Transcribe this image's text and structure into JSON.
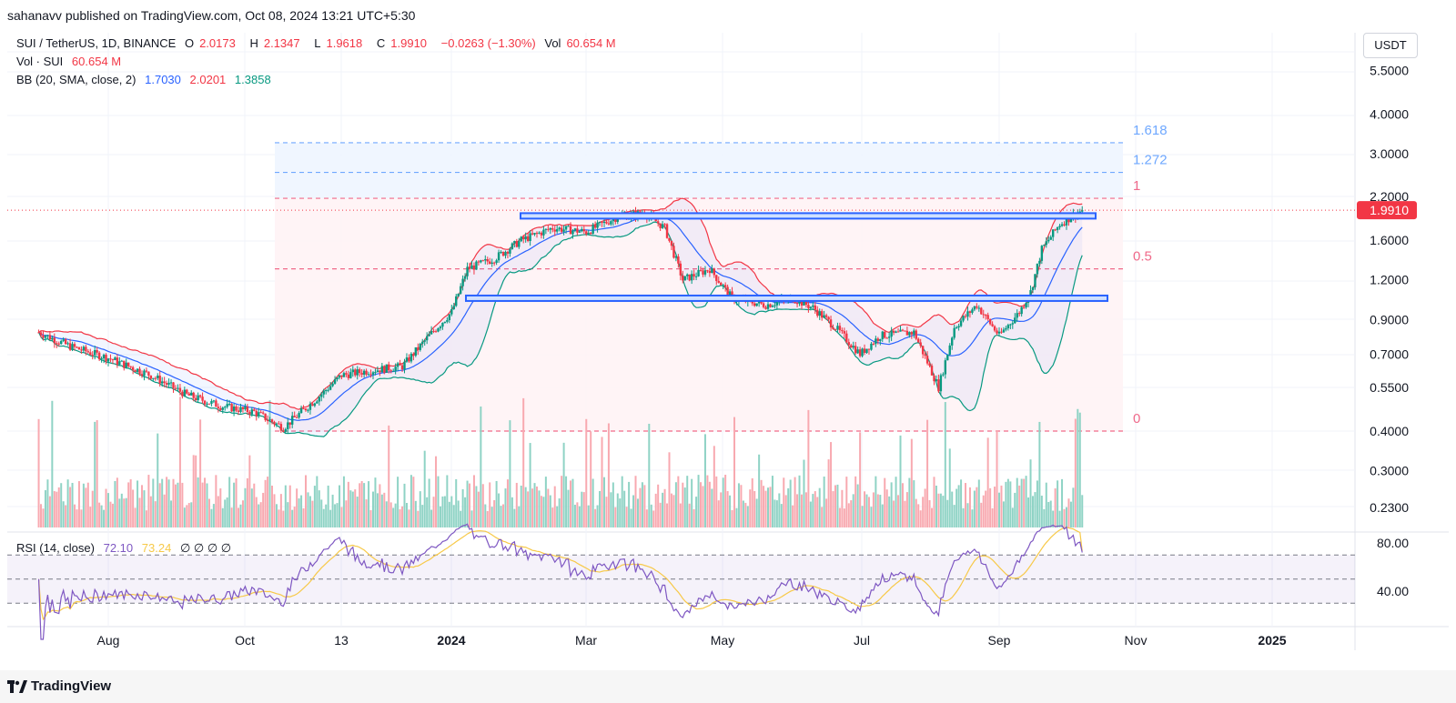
{
  "header": {
    "publisher": "sahanavv published on TradingView.com, Oct 08, 2024 13:21 UTC+5:30"
  },
  "legend": {
    "symbol": "SUI / TetherUS, 1D, BINANCE",
    "open_label": "O",
    "open": "2.0173",
    "high_label": "H",
    "high": "2.1347",
    "low_label": "L",
    "low": "1.9618",
    "close_label": "C",
    "close": "1.9910",
    "change": "−0.0263 (−1.30%)",
    "vol_label": "Vol",
    "vol": "60.654 M",
    "vol_row_label": "Vol · SUI",
    "vol_row_value": "60.654 M",
    "bb_label": "BB (20, SMA, close, 2)",
    "bb_basis": "1.7030",
    "bb_upper": "2.0201",
    "bb_lower": "1.3858"
  },
  "currency": "USDT",
  "rsi_legend": {
    "label": "RSI (14, close)",
    "rsi": "72.10",
    "ma": "73.24",
    "extras": "∅ ∅ ∅ ∅"
  },
  "footer": {
    "brand": "TradingView"
  },
  "colors": {
    "up": "#089981",
    "down": "#f23645",
    "bb_basis": "#2962ff",
    "bb_upper": "#f23645",
    "bb_lower": "#089981",
    "rsi": "#7e57c2",
    "rsi_ma": "#f7c948",
    "zone": "#2962ff",
    "fib_ext": "#6fa8ff",
    "fib": "#f06a8a"
  },
  "chart_data": {
    "type": "line",
    "title": "SUI / TetherUS, 1D, BINANCE",
    "y_scale": "log",
    "y_ticks": [
      "5.5000",
      "4.0000",
      "3.0000",
      "2.2000",
      "1.6000",
      "1.2000",
      "0.9000",
      "0.7000",
      "0.5500",
      "0.4000",
      "0.3000",
      "0.2300"
    ],
    "x_ticks": [
      "Aug",
      "Oct",
      "13",
      "2024",
      "Mar",
      "May",
      "Jul",
      "Sep",
      "Nov",
      "2025"
    ],
    "last_price": "1.9910",
    "price_path": [
      [
        "2023-07-01",
        0.82
      ],
      [
        "2023-07-15",
        0.74
      ],
      [
        "2023-08-01",
        0.68
      ],
      [
        "2023-08-20",
        0.6
      ],
      [
        "2023-09-05",
        0.52
      ],
      [
        "2023-09-20",
        0.48
      ],
      [
        "2023-10-05",
        0.46
      ],
      [
        "2023-10-18",
        0.41
      ],
      [
        "2023-11-01",
        0.5
      ],
      [
        "2023-11-13",
        0.6
      ],
      [
        "2023-11-25",
        0.62
      ],
      [
        "2023-12-10",
        0.64
      ],
      [
        "2023-12-22",
        0.8
      ],
      [
        "2024-01-01",
        0.95
      ],
      [
        "2024-01-08",
        1.3
      ],
      [
        "2024-01-20",
        1.4
      ],
      [
        "2024-02-01",
        1.6
      ],
      [
        "2024-02-15",
        1.75
      ],
      [
        "2024-03-01",
        1.7
      ],
      [
        "2024-03-15",
        1.9
      ],
      [
        "2024-03-27",
        1.95
      ],
      [
        "2024-04-05",
        1.75
      ],
      [
        "2024-04-13",
        1.2
      ],
      [
        "2024-04-25",
        1.3
      ],
      [
        "2024-05-05",
        1.05
      ],
      [
        "2024-05-20",
        1.0
      ],
      [
        "2024-06-01",
        1.05
      ],
      [
        "2024-06-10",
        0.98
      ],
      [
        "2024-06-20",
        0.85
      ],
      [
        "2024-07-01",
        0.7
      ],
      [
        "2024-07-10",
        0.8
      ],
      [
        "2024-07-25",
        0.82
      ],
      [
        "2024-08-05",
        0.55
      ],
      [
        "2024-08-12",
        0.85
      ],
      [
        "2024-08-22",
        1.0
      ],
      [
        "2024-09-01",
        0.8
      ],
      [
        "2024-09-10",
        0.95
      ],
      [
        "2024-09-15",
        1.1
      ],
      [
        "2024-09-20",
        1.5
      ],
      [
        "2024-09-28",
        1.8
      ],
      [
        "2024-10-08",
        1.991
      ]
    ],
    "horizontal_zones": [
      {
        "name": "resistance",
        "price": 1.91
      },
      {
        "name": "support",
        "price": 1.05
      }
    ],
    "fib_levels": [
      {
        "label": "1.618",
        "price": 3.25
      },
      {
        "label": "1.272",
        "price": 2.62
      },
      {
        "label": "1",
        "price": 2.17
      },
      {
        "label": "0.5",
        "price": 1.3
      },
      {
        "label": "0",
        "price": 0.4
      }
    ],
    "rsi": {
      "label": "RSI (14, close)",
      "ticks": [
        "80.00",
        "40.00"
      ],
      "upper_band": 70,
      "lower_band": 30,
      "last": 72.1,
      "ma_last": 73.24
    }
  }
}
